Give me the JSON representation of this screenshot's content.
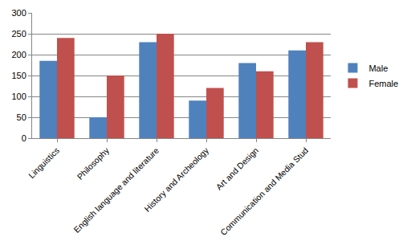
{
  "chart_data": {
    "type": "bar",
    "categories": [
      "Linguistics",
      "Philosophy",
      "English language and literature",
      "History and Archeology",
      "Art and Design",
      "Communication and Media Stud"
    ],
    "series": [
      {
        "name": "Male",
        "color": "#4f81bd",
        "values": [
          185,
          50,
          230,
          90,
          180,
          210
        ]
      },
      {
        "name": "Female",
        "color": "#c0504d",
        "values": [
          240,
          150,
          250,
          120,
          160,
          230
        ]
      }
    ],
    "ylim": [
      0,
      300
    ],
    "yticks": [
      0,
      50,
      100,
      150,
      200,
      250,
      300
    ],
    "grid": true,
    "legend": "right"
  }
}
